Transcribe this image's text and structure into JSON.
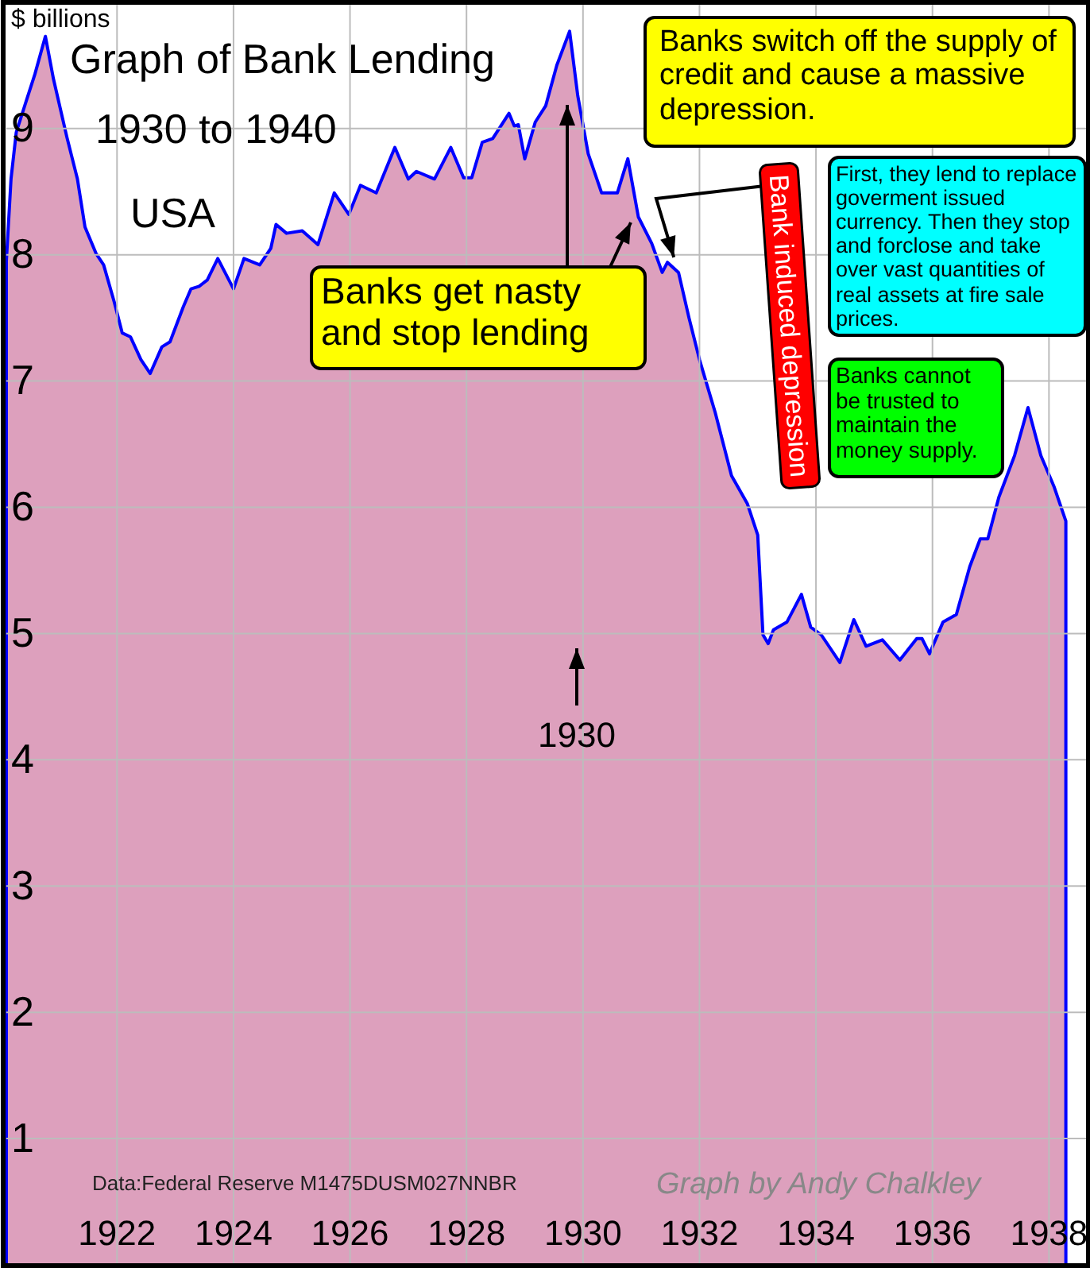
{
  "chart_data": {
    "type": "area",
    "title": "Graph of Bank Lending",
    "subtitle": "1930 to 1940",
    "ylabel": "$ billions",
    "annotations": [
      "USA",
      "Banks get nasty and stop lending",
      "Banks switch off the supply of credit and cause a massive depression.",
      {
        "text": "Bank induced depression",
        "x": 1931.56,
        "y": 7.98
      },
      "First, they lend to replace goverment issued currency. Then they stop and forclose and take over vast quantities of real assets at fire sale prices.",
      "Banks cannot be trusted to maintain the money supply.",
      "1930",
      "Data:Federal Reserve M1475DUSM027NNBR",
      "Graph by Andy Chalkley"
    ],
    "x": [
      1920.1,
      1920.18,
      1920.27,
      1920.45,
      1920.59,
      1920.77,
      1920.91,
      1921.14,
      1921.32,
      1921.45,
      1921.64,
      1921.77,
      1921.95,
      1922.09,
      1922.23,
      1922.41,
      1922.57,
      1922.77,
      1922.91,
      1923.14,
      1923.27,
      1923.41,
      1923.55,
      1923.73,
      1924.0,
      1924.18,
      1924.45,
      1924.64,
      1924.73,
      1924.91,
      1925.18,
      1925.45,
      1925.73,
      1925.98,
      1926.18,
      1926.45,
      1926.77,
      1927.0,
      1927.14,
      1927.45,
      1927.73,
      1927.95,
      1928.09,
      1928.27,
      1928.45,
      1928.73,
      1928.82,
      1928.89,
      1929.0,
      1929.18,
      1929.36,
      1929.55,
      1929.77,
      1929.91,
      1930.09,
      1930.32,
      1930.59,
      1930.77,
      1930.95,
      1931.18,
      1931.36,
      1931.45,
      1931.64,
      1931.82,
      1932.0,
      1932.27,
      1932.55,
      1932.82,
      1933.0,
      1933.09,
      1933.18,
      1933.27,
      1933.5,
      1933.75,
      1933.91,
      1934.09,
      1934.41,
      1934.65,
      1934.86,
      1935.14,
      1935.44,
      1935.73,
      1935.82,
      1935.95,
      1936.18,
      1936.41,
      1936.64,
      1936.82,
      1936.95,
      1937.14,
      1937.41,
      1937.64,
      1937.86,
      1938.09,
      1938.29
    ],
    "series": [
      {
        "color": "#0000ff",
        "values": [
          7.95,
          8.6,
          8.97,
          9.23,
          9.43,
          9.73,
          9.39,
          8.93,
          8.6,
          8.22,
          8.01,
          7.92,
          7.63,
          7.38,
          7.35,
          7.17,
          7.06,
          7.27,
          7.31,
          7.59,
          7.73,
          7.75,
          7.8,
          7.97,
          7.73,
          7.97,
          7.92,
          8.05,
          8.24,
          8.17,
          8.19,
          8.08,
          8.49,
          8.32,
          8.55,
          8.49,
          8.85,
          8.6,
          8.66,
          8.6,
          8.85,
          8.61,
          8.61,
          8.89,
          8.92,
          9.12,
          9.02,
          9.03,
          8.76,
          9.05,
          9.18,
          9.5,
          9.77,
          9.26,
          8.8,
          8.49,
          8.49,
          8.76,
          8.3,
          8.09,
          7.86,
          7.94,
          7.86,
          7.5,
          7.17,
          6.75,
          6.25,
          6.03,
          5.78,
          4.99,
          4.92,
          5.03,
          5.09,
          5.31,
          5.05,
          4.99,
          4.77,
          5.11,
          4.9,
          4.95,
          4.79,
          4.96,
          4.96,
          4.84,
          5.09,
          5.15,
          5.53,
          5.75,
          5.75,
          6.08,
          6.41,
          6.79,
          6.41,
          6.16,
          5.89
        ]
      }
    ],
    "xlim": [
      1920.1,
      1938.65
    ],
    "ylim": [
      0,
      9.98
    ],
    "xticks": [
      1922,
      1924,
      1926,
      1928,
      1930,
      1932,
      1934,
      1936,
      1938
    ],
    "yticks": [
      1,
      2,
      3,
      4,
      5,
      6,
      7,
      8,
      9
    ],
    "grid": true
  }
}
